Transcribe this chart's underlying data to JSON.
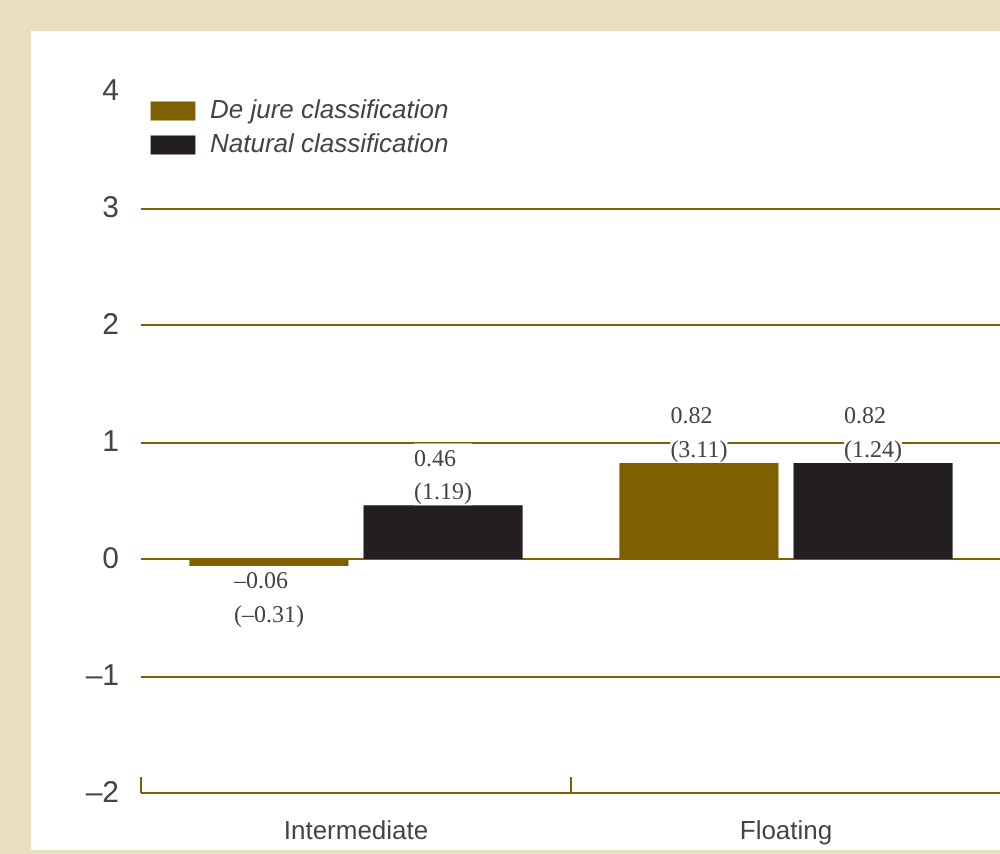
{
  "chart_data": {
    "type": "bar",
    "categories": [
      "Intermediate",
      "Floating"
    ],
    "series": [
      {
        "name": "De jure classification",
        "color": "#7f6000",
        "values": [
          -0.06,
          0.82
        ],
        "value_labels": [
          "–0.06\n(–0.31)",
          "0.82\n(3.11)"
        ]
      },
      {
        "name": "Natural classification",
        "color": "#231f20",
        "values": [
          0.46,
          0.82
        ],
        "value_labels": [
          "0.46\n(1.19)",
          "0.82\n(1.24)"
        ]
      }
    ],
    "ylim": [
      -2,
      4
    ],
    "yticks": [
      {
        "value": -2,
        "label": "–2"
      },
      {
        "value": -1,
        "label": "–1"
      },
      0,
      1,
      2,
      3,
      4
    ],
    "grid": "y",
    "legend": "top left"
  }
}
